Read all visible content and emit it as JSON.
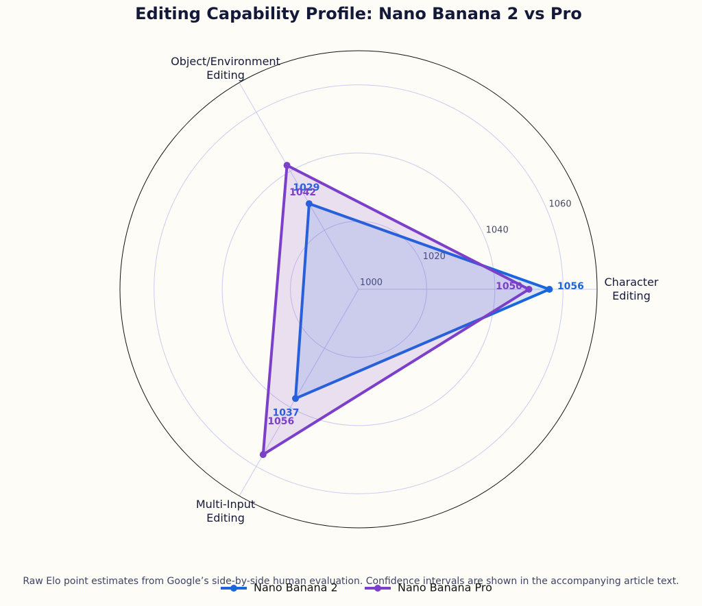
{
  "chart_data": {
    "type": "radar",
    "title": "Editing Capability Profile: Nano Banana 2 vs Pro",
    "categories": [
      "Character\nEditing",
      "Object/Environment\nEditing",
      "Multi-Input\nEditing"
    ],
    "series": [
      {
        "name": "Nano Banana 2",
        "color": "#1a66dd",
        "values": [
          1056,
          1029,
          1037
        ]
      },
      {
        "name": "Nano Banana Pro",
        "color": "#7b3fc9",
        "values": [
          1050,
          1042,
          1056
        ]
      }
    ],
    "ylim": [
      1000,
      1070
    ],
    "yticks": [
      1000,
      1020,
      1040,
      1060
    ],
    "grid": true,
    "legend": "bottom",
    "note": "Raw Elo point estimates from Google’s side-by-side human evaluation. Confidence intervals are shown in the accompanying article text."
  }
}
